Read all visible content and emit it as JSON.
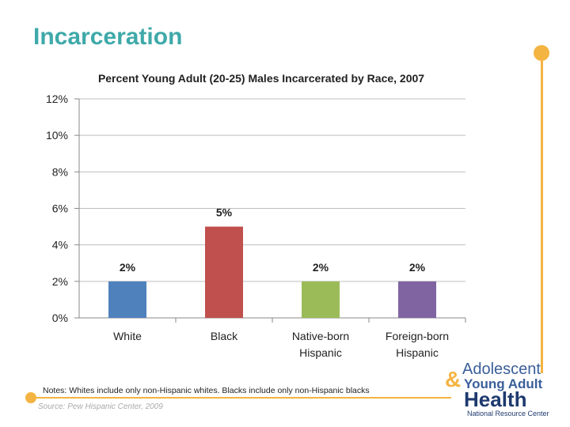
{
  "slide": {
    "title": "Incarceration",
    "notes": "Notes: Whites include only non-Hispanic whites. Blacks include only non-Hispanic blacks",
    "source": "Source: Pew Hispanic Center, 2009",
    "logo": {
      "line1": "Adolescent",
      "amp": "&",
      "line2": "Young Adult",
      "line3": "Health",
      "line4": "National Resource Center"
    },
    "accent_color": "#f4b442",
    "title_color": "#3fa9a9"
  },
  "chart_data": {
    "type": "bar",
    "title": "Percent Young Adult (20-25) Males Incarcerated by Race, 2007",
    "categories": [
      [
        "White"
      ],
      [
        "Black"
      ],
      [
        "Native-born",
        "Hispanic"
      ],
      [
        "Foreign-born",
        "Hispanic"
      ]
    ],
    "values": [
      2,
      5,
      2,
      2
    ],
    "data_labels": [
      "2%",
      "5%",
      "2%",
      "2%"
    ],
    "colors": [
      "#4f81bd",
      "#c0504d",
      "#9bbb59",
      "#8064a2"
    ],
    "y_ticks": [
      "0%",
      "2%",
      "4%",
      "6%",
      "8%",
      "10%",
      "12%"
    ],
    "ylim": [
      0,
      12
    ],
    "grid": true,
    "legend": "none"
  }
}
